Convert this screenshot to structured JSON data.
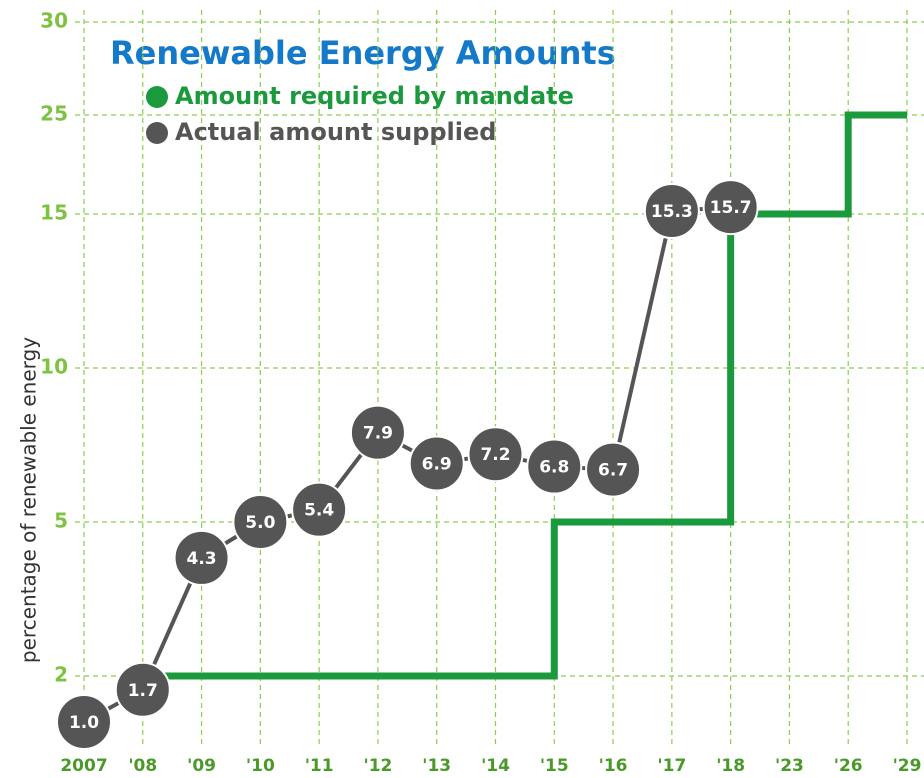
{
  "chart_data": {
    "type": "line",
    "title": "Renewable Energy Amounts",
    "y_label": "percentage of renewable energy",
    "categories": [
      "2007",
      "'08",
      "'09",
      "'10",
      "'11",
      "'12",
      "'13",
      "'14",
      "'15",
      "'16",
      "'17",
      "'18",
      "'23",
      "'26",
      "'29"
    ],
    "series": [
      {
        "name": "Amount required by mandate",
        "color": "#1a9a3c",
        "step": true,
        "values": [
          null,
          2,
          2,
          2,
          2,
          2,
          2,
          2,
          5,
          5,
          5,
          15,
          15,
          25,
          25
        ]
      },
      {
        "name": "Actual amount supplied",
        "color": "#555555",
        "values": [
          1.0,
          1.7,
          4.3,
          5.0,
          5.4,
          7.9,
          6.9,
          7.2,
          6.8,
          6.7,
          15.3,
          15.7,
          null,
          null,
          null
        ],
        "value_labels": [
          "1.0",
          "1.7",
          "4.3",
          "5.0",
          "5.4",
          "7.9",
          "6.9",
          "7.2",
          "6.8",
          "6.7",
          "15.3",
          "15.7",
          null,
          null,
          null
        ]
      }
    ],
    "ylim": [
      0.5,
      30
    ],
    "yticks": [
      2,
      5,
      10,
      15,
      25,
      30
    ],
    "grid": true
  }
}
